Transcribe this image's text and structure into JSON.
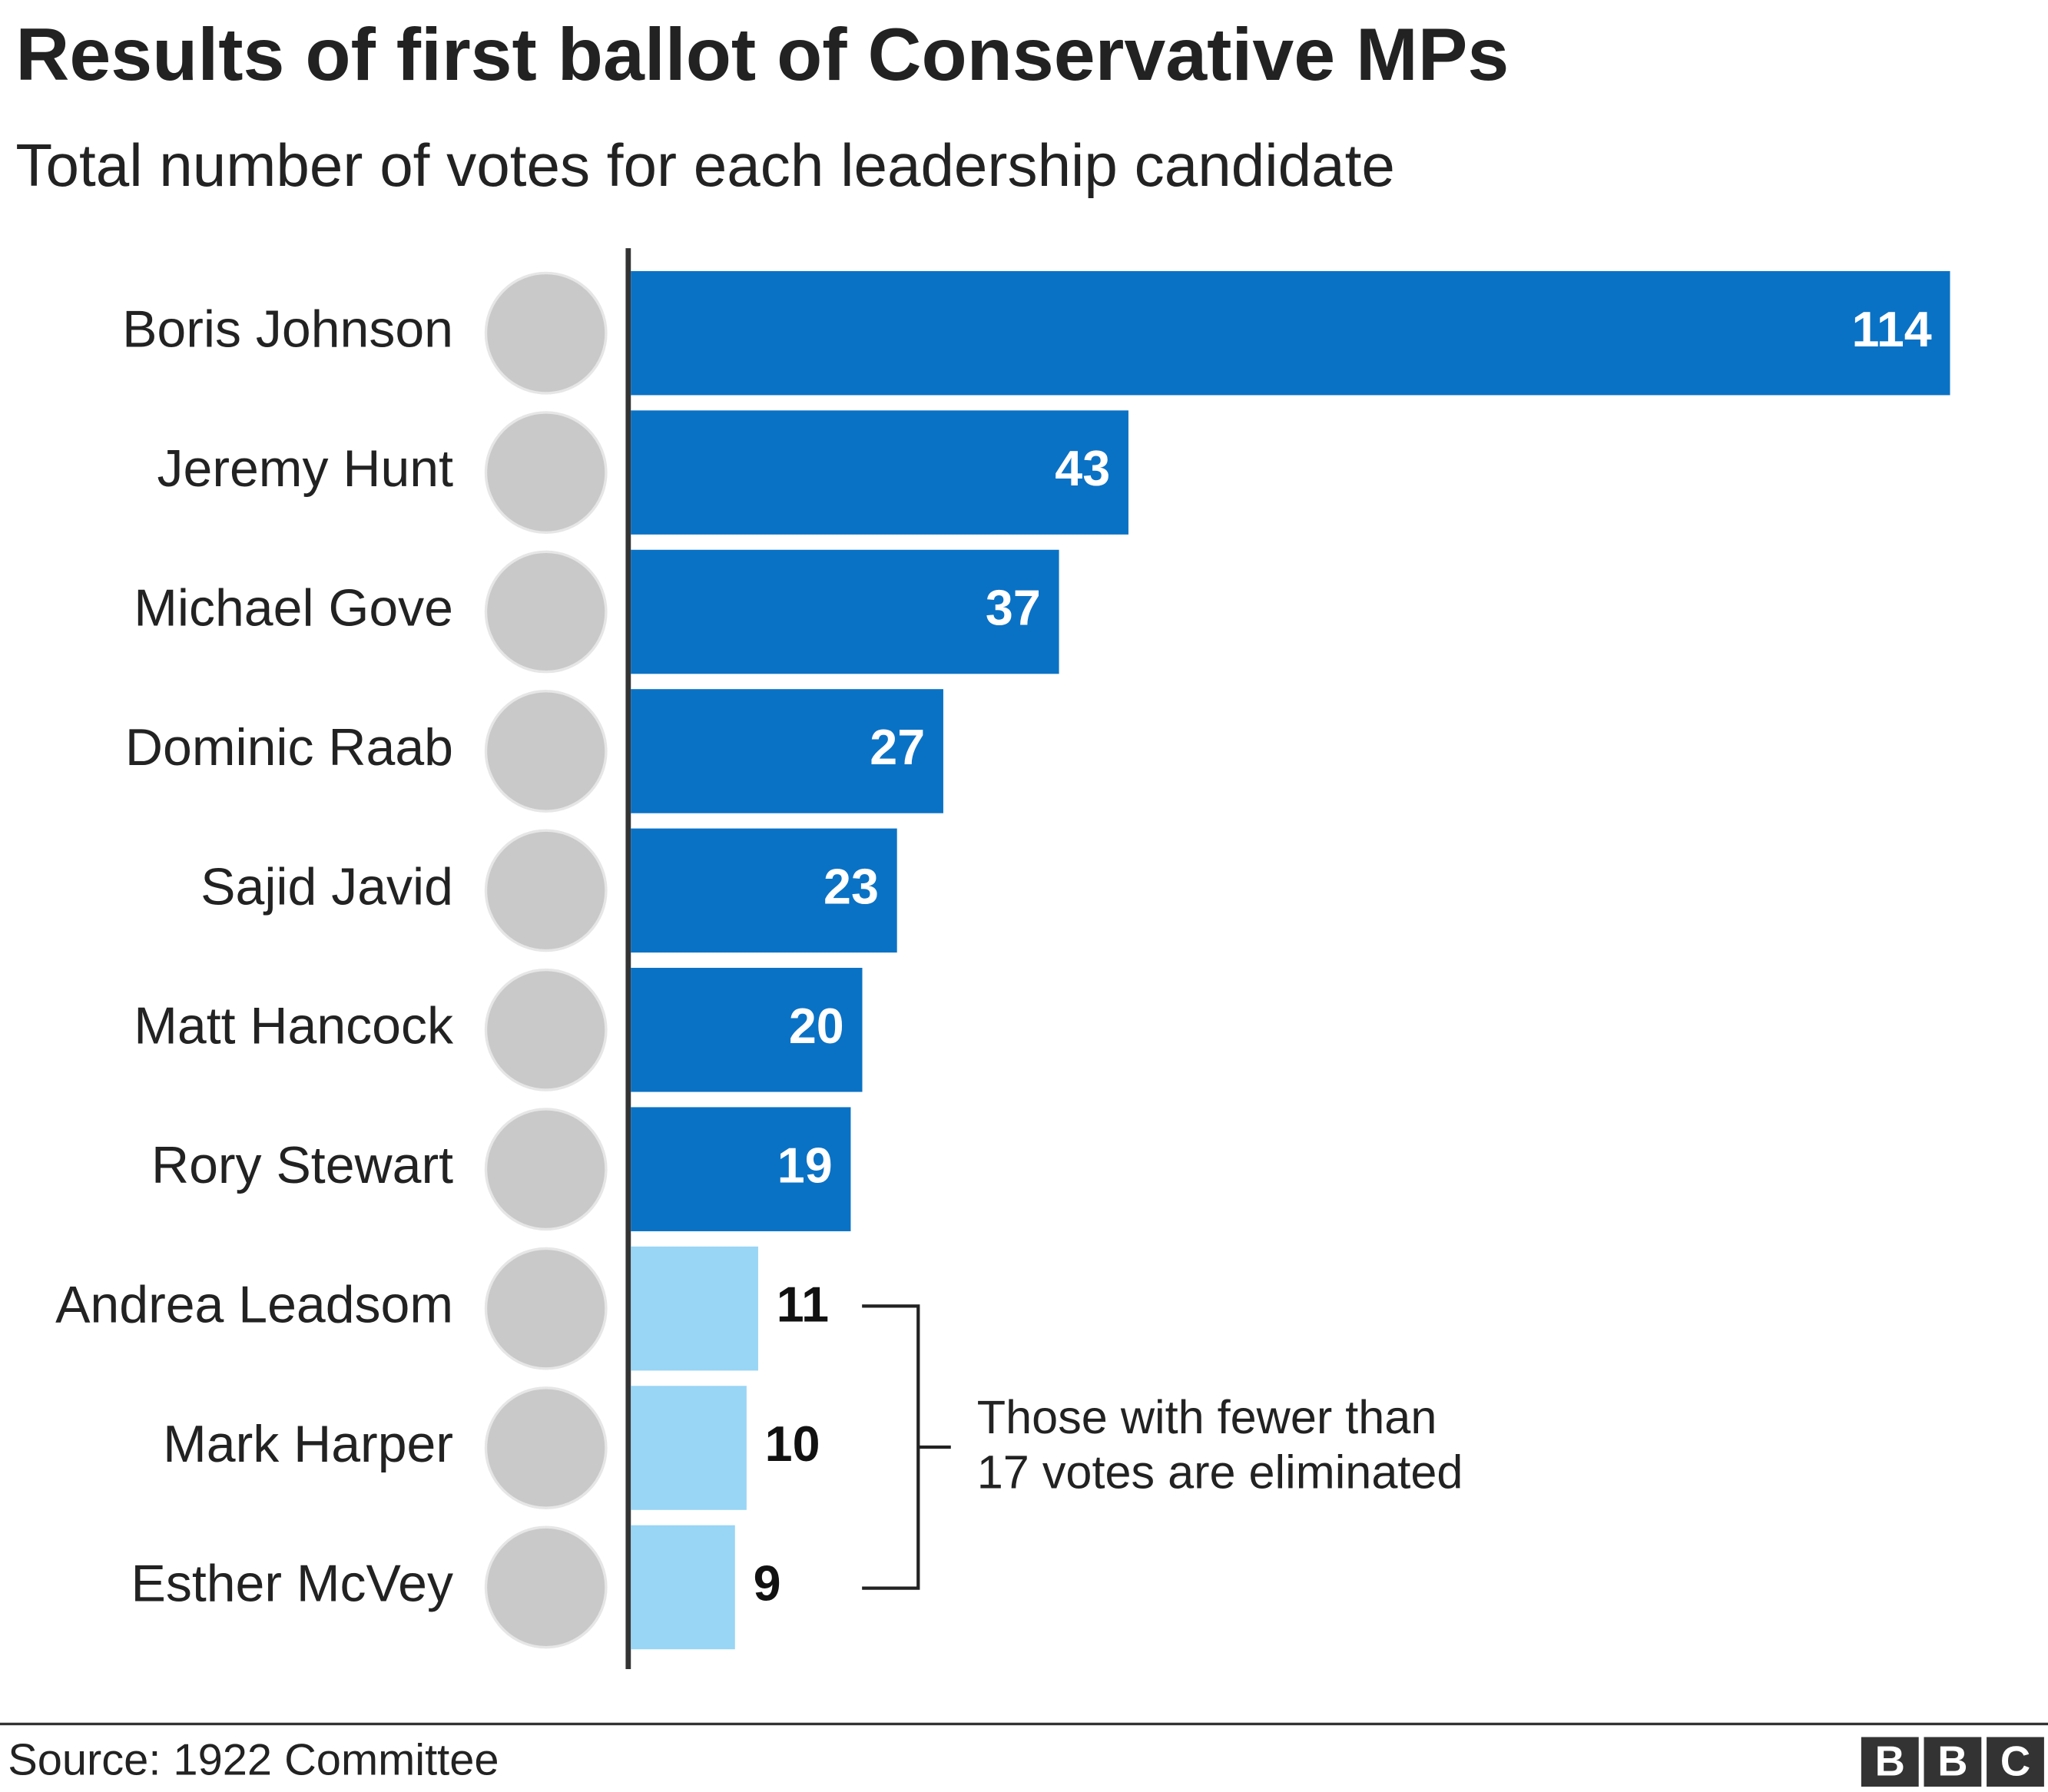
{
  "chart_data": {
    "type": "bar",
    "orientation": "horizontal",
    "title": "Results of first ballot of Conservative MPs",
    "subtitle": "Total number of votes for each leadership candidate",
    "categories": [
      "Boris Johnson",
      "Jeremy Hunt",
      "Michael Gove",
      "Dominic Raab",
      "Sajid Javid",
      "Matt Hancock",
      "Rory Stewart",
      "Andrea Leadsom",
      "Mark Harper",
      "Esther McVey"
    ],
    "values": [
      114,
      43,
      37,
      27,
      23,
      20,
      19,
      11,
      10,
      9
    ],
    "colors": [
      "#0a72c5",
      "#0a72c5",
      "#0a72c5",
      "#0a72c5",
      "#0a72c5",
      "#0a72c5",
      "#0a72c5",
      "#99d5f5",
      "#99d5f5",
      "#99d5f5"
    ],
    "annotation": [
      "Those with fewer than",
      "17 votes are eliminated"
    ],
    "source": "Source: 1922 Committee",
    "logo": [
      "B",
      "B",
      "C"
    ]
  }
}
